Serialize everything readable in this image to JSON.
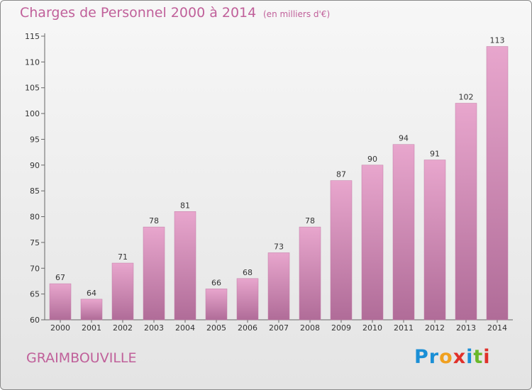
{
  "chart_data": {
    "type": "bar",
    "title": "Charges de Personnel 2000 à 2014",
    "subtitle": "(en milliers d'€)",
    "categories": [
      "2000",
      "2001",
      "2002",
      "2003",
      "2004",
      "2005",
      "2006",
      "2007",
      "2008",
      "2009",
      "2010",
      "2011",
      "2012",
      "2013",
      "2014"
    ],
    "values": [
      67,
      64,
      71,
      78,
      81,
      66,
      68,
      73,
      78,
      87,
      90,
      94,
      91,
      102,
      113
    ],
    "ylim": [
      60,
      115
    ],
    "yticks": [
      60,
      65,
      70,
      75,
      80,
      85,
      90,
      95,
      100,
      105,
      110,
      115
    ],
    "grid": false,
    "bar_color": "#d98ab8"
  },
  "footer": {
    "town": "GRAIMBOUVILLE",
    "logo_text": "Proxiti",
    "logo_colors": [
      "#1a8fd6",
      "#1a8fd6",
      "#f0a020",
      "#e0302a",
      "#1a8fd6",
      "#6ab82a",
      "#e0302a"
    ]
  }
}
